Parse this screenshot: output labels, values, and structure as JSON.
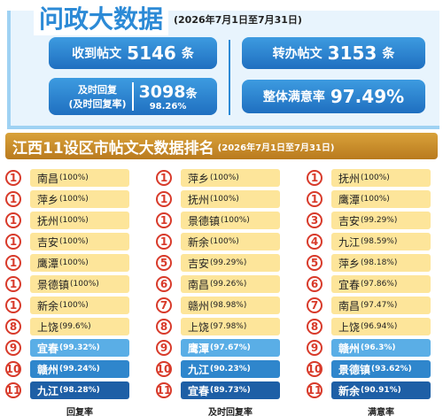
{
  "header": {
    "title": "问政大数据",
    "date": "(2026年7月1日至7月31日)"
  },
  "stats": {
    "received": {
      "label": "收到帖文",
      "value": "5146",
      "unit": "条"
    },
    "transferred": {
      "label": "转办帖文",
      "value": "3153",
      "unit": "条"
    },
    "timely": {
      "label": "及时回复",
      "sublabel": "(及时回复率)",
      "value": "3098",
      "unit": "条",
      "rate": "98.26%"
    },
    "satisfaction": {
      "label": "整体满意率",
      "value": "97.49%"
    }
  },
  "ranking": {
    "title": "江西11设区市帖文大数据排名",
    "date": "(2026年7月1日至7月31日)",
    "columns": [
      {
        "label": "回复率",
        "rows": [
          {
            "rank": 1,
            "city": "南昌",
            "rate": "(100%)"
          },
          {
            "rank": 1,
            "city": "萍乡",
            "rate": "(100%)"
          },
          {
            "rank": 1,
            "city": "抚州",
            "rate": "(100%)"
          },
          {
            "rank": 1,
            "city": "吉安",
            "rate": "(100%)"
          },
          {
            "rank": 1,
            "city": "鹰潭",
            "rate": "(100%)"
          },
          {
            "rank": 1,
            "city": "景德镇",
            "rate": "(100%)"
          },
          {
            "rank": 1,
            "city": "新余",
            "rate": "(100%)"
          },
          {
            "rank": 8,
            "city": "上饶",
            "rate": "(99.6%)"
          },
          {
            "rank": 9,
            "city": "宜春",
            "rate": "(99.32%)"
          },
          {
            "rank": 10,
            "city": "赣州",
            "rate": "(99.24%)"
          },
          {
            "rank": 11,
            "city": "九江",
            "rate": "(98.28%)"
          }
        ]
      },
      {
        "label": "及时回复率",
        "rows": [
          {
            "rank": 1,
            "city": "萍乡",
            "rate": "(100%)"
          },
          {
            "rank": 1,
            "city": "抚州",
            "rate": "(100%)"
          },
          {
            "rank": 1,
            "city": "景德镇",
            "rate": "(100%)"
          },
          {
            "rank": 1,
            "city": "新余",
            "rate": "(100%)"
          },
          {
            "rank": 5,
            "city": "吉安",
            "rate": "(99.29%)"
          },
          {
            "rank": 6,
            "city": "南昌",
            "rate": "(99.26%)"
          },
          {
            "rank": 7,
            "city": "赣州",
            "rate": "(98.98%)"
          },
          {
            "rank": 8,
            "city": "上饶",
            "rate": "(97.98%)"
          },
          {
            "rank": 9,
            "city": "鹰潭",
            "rate": "(97.67%)"
          },
          {
            "rank": 10,
            "city": "九江",
            "rate": "(90.23%)"
          },
          {
            "rank": 11,
            "city": "宜春",
            "rate": "(89.73%)"
          }
        ]
      },
      {
        "label": "满意率",
        "rows": [
          {
            "rank": 1,
            "city": "抚州",
            "rate": "(100%)"
          },
          {
            "rank": 1,
            "city": "鹰潭",
            "rate": "(100%)"
          },
          {
            "rank": 3,
            "city": "吉安",
            "rate": "(99.29%)"
          },
          {
            "rank": 4,
            "city": "九江",
            "rate": "(98.59%)"
          },
          {
            "rank": 5,
            "city": "萍乡",
            "rate": "(98.18%)"
          },
          {
            "rank": 6,
            "city": "宜春",
            "rate": "(97.86%)"
          },
          {
            "rank": 7,
            "city": "南昌",
            "rate": "(97.47%)"
          },
          {
            "rank": 8,
            "city": "上饶",
            "rate": "(96.94%)"
          },
          {
            "rank": 9,
            "city": "赣州",
            "rate": "(96.3%)"
          },
          {
            "rank": 10,
            "city": "景德镇",
            "rate": "(93.62%)"
          },
          {
            "rank": 11,
            "city": "新余",
            "rate": "(90.91%)"
          }
        ]
      }
    ]
  }
}
